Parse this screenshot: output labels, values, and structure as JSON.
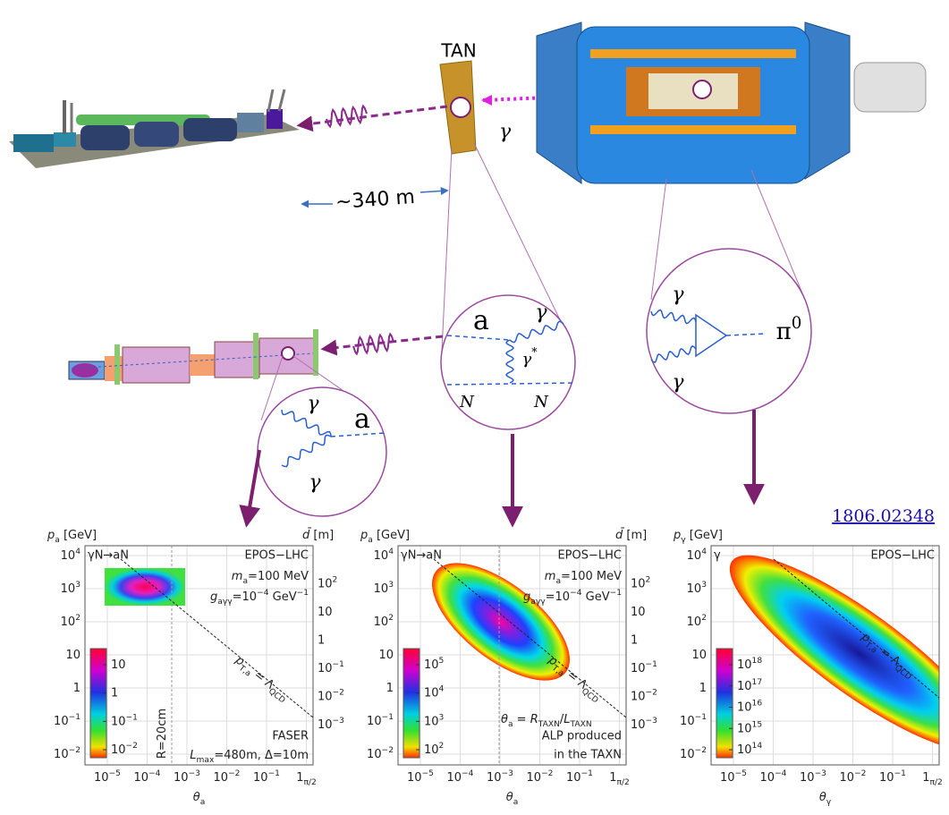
{
  "beamline": {
    "tan": "TAN",
    "gamma": "γ",
    "distance": "~340 m"
  },
  "diagrams": {
    "faser": {
      "gamma_top": "γ",
      "gamma_bottom": "γ",
      "axion": "a"
    },
    "tan": {
      "axion": "a",
      "photon": "γ",
      "virtual_photon": [
        {
          "text": "γ"
        },
        {
          "text": "*",
          "style": "sup"
        }
      ],
      "nucleus_in": "N",
      "nucleus_out": "N"
    },
    "pion": {
      "gamma_top": "γ",
      "gamma_bottom": "γ",
      "pion": [
        {
          "text": "π"
        },
        {
          "text": "0",
          "style": "sup"
        }
      ]
    }
  },
  "reference": "1806.02348",
  "plots": [
    {
      "y_label": [
        {
          "text": "p",
          "style": "i"
        },
        {
          "text": "a",
          "style": "sub"
        },
        {
          "text": " [GeV]"
        }
      ],
      "y2_label": [
        {
          "text": "d̄",
          "style": "i"
        },
        {
          "text": " [m]"
        }
      ],
      "x_label": [
        {
          "text": "θ",
          "style": "i"
        },
        {
          "text": "a",
          "style": "sub"
        }
      ],
      "process": "γN→aN",
      "generator": "EPOS−LHC",
      "mass": [
        {
          "text": "m",
          "style": "i"
        },
        {
          "text": "a",
          "style": "sub"
        },
        {
          "text": "=100 MeV"
        }
      ],
      "coupling": [
        {
          "text": "g",
          "style": "i"
        },
        {
          "text": "aγγ",
          "style": "sub"
        },
        {
          "text": "=10"
        },
        {
          "text": "−4",
          "style": "sup"
        },
        {
          "text": " GeV"
        },
        {
          "text": "−1",
          "style": "sup"
        }
      ],
      "line_label": [
        {
          "text": "p",
          "style": "i"
        },
        {
          "text": "T,a",
          "style": "sub"
        },
        {
          "text": " = Λ"
        },
        {
          "text": "QCD",
          "style": "sub"
        }
      ],
      "cut_label": [
        {
          "text": "R=20cm"
        }
      ],
      "detector": "FASER",
      "detector_specs": [
        {
          "text": "L",
          "style": "i"
        },
        {
          "text": "max",
          "style": "sub"
        },
        {
          "text": "=480m, Δ=10m"
        }
      ],
      "yticks": [
        [
          {
            "text": "10"
          },
          {
            "text": "−2",
            "style": "sup"
          }
        ],
        [
          {
            "text": "10"
          },
          {
            "text": "−1",
            "style": "sup"
          }
        ],
        [
          {
            "text": "1"
          }
        ],
        [
          {
            "text": "10"
          }
        ],
        [
          {
            "text": "10"
          },
          {
            "text": "2",
            "style": "sup"
          }
        ],
        [
          {
            "text": "10"
          },
          {
            "text": "3",
            "style": "sup"
          }
        ],
        [
          {
            "text": "10"
          },
          {
            "text": "4",
            "style": "sup"
          }
        ]
      ],
      "y2ticks": [
        [
          {
            "text": "10"
          },
          {
            "text": "−3",
            "style": "sup"
          }
        ],
        [
          {
            "text": "10"
          },
          {
            "text": "−2",
            "style": "sup"
          }
        ],
        [
          {
            "text": "10"
          },
          {
            "text": "−1",
            "style": "sup"
          }
        ],
        [
          {
            "text": "1"
          }
        ],
        [
          {
            "text": "10"
          }
        ],
        [
          {
            "text": "10"
          },
          {
            "text": "2",
            "style": "sup"
          }
        ]
      ],
      "xticks": [
        [
          {
            "text": "10"
          },
          {
            "text": "−5",
            "style": "sup"
          }
        ],
        [
          {
            "text": "10"
          },
          {
            "text": "−4",
            "style": "sup"
          }
        ],
        [
          {
            "text": "10"
          },
          {
            "text": "−3",
            "style": "sup"
          }
        ],
        [
          {
            "text": "10"
          },
          {
            "text": "−2",
            "style": "sup"
          }
        ],
        [
          {
            "text": "10"
          },
          {
            "text": "−1",
            "style": "sup"
          }
        ],
        [
          {
            "text": "1"
          },
          {
            "text": "π/2",
            "style": "sub"
          }
        ]
      ],
      "colorbar_ticks": [
        [
          {
            "text": "10"
          },
          {
            "text": "−2",
            "style": "sup"
          }
        ],
        [
          {
            "text": "10"
          },
          {
            "text": "−1",
            "style": "sup"
          }
        ],
        [
          {
            "text": "1"
          }
        ],
        [
          {
            "text": "10"
          }
        ]
      ]
    },
    {
      "y_label": [
        {
          "text": "p",
          "style": "i"
        },
        {
          "text": "a",
          "style": "sub"
        },
        {
          "text": " [GeV]"
        }
      ],
      "y2_label": [
        {
          "text": "d̄",
          "style": "i"
        },
        {
          "text": " [m]"
        }
      ],
      "x_label": [
        {
          "text": "θ",
          "style": "i"
        },
        {
          "text": "a",
          "style": "sub"
        }
      ],
      "process": "γN→aN",
      "generator": "EPOS−LHC",
      "mass": [
        {
          "text": "m",
          "style": "i"
        },
        {
          "text": "a",
          "style": "sub"
        },
        {
          "text": "=100 MeV"
        }
      ],
      "coupling": [
        {
          "text": "g",
          "style": "i"
        },
        {
          "text": "aγγ",
          "style": "sub"
        },
        {
          "text": "=10"
        },
        {
          "text": "−4",
          "style": "sup"
        },
        {
          "text": " GeV"
        },
        {
          "text": "−1",
          "style": "sup"
        }
      ],
      "line_label": [
        {
          "text": "p",
          "style": "i"
        },
        {
          "text": "T,a",
          "style": "sub"
        },
        {
          "text": " = Λ"
        },
        {
          "text": "QCD",
          "style": "sub"
        }
      ],
      "cut_label": [
        {
          "text": "θ",
          "style": "i"
        },
        {
          "text": "a",
          "style": "sub"
        },
        {
          "text": " = "
        },
        {
          "text": "R",
          "style": "i"
        },
        {
          "text": "TAXN",
          "style": "sub"
        },
        {
          "text": "/"
        },
        {
          "text": "L",
          "style": "i"
        },
        {
          "text": "TAXN",
          "style": "sub"
        }
      ],
      "note": [
        "ALP produced",
        "in the TAXN"
      ],
      "yticks": [
        [
          {
            "text": "10"
          },
          {
            "text": "−2",
            "style": "sup"
          }
        ],
        [
          {
            "text": "10"
          },
          {
            "text": "−1",
            "style": "sup"
          }
        ],
        [
          {
            "text": "1"
          }
        ],
        [
          {
            "text": "10"
          }
        ],
        [
          {
            "text": "10"
          },
          {
            "text": "2",
            "style": "sup"
          }
        ],
        [
          {
            "text": "10"
          },
          {
            "text": "3",
            "style": "sup"
          }
        ],
        [
          {
            "text": "10"
          },
          {
            "text": "4",
            "style": "sup"
          }
        ]
      ],
      "y2ticks": [
        [
          {
            "text": "10"
          },
          {
            "text": "−3",
            "style": "sup"
          }
        ],
        [
          {
            "text": "10"
          },
          {
            "text": "−2",
            "style": "sup"
          }
        ],
        [
          {
            "text": "10"
          },
          {
            "text": "−1",
            "style": "sup"
          }
        ],
        [
          {
            "text": "1"
          }
        ],
        [
          {
            "text": "10"
          }
        ],
        [
          {
            "text": "10"
          },
          {
            "text": "2",
            "style": "sup"
          }
        ]
      ],
      "xticks": [
        [
          {
            "text": "10"
          },
          {
            "text": "−5",
            "style": "sup"
          }
        ],
        [
          {
            "text": "10"
          },
          {
            "text": "−4",
            "style": "sup"
          }
        ],
        [
          {
            "text": "10"
          },
          {
            "text": "−3",
            "style": "sup"
          }
        ],
        [
          {
            "text": "10"
          },
          {
            "text": "−2",
            "style": "sup"
          }
        ],
        [
          {
            "text": "10"
          },
          {
            "text": "−1",
            "style": "sup"
          }
        ],
        [
          {
            "text": "1"
          },
          {
            "text": "π/2",
            "style": "sub"
          }
        ]
      ],
      "colorbar_ticks": [
        [
          {
            "text": "10"
          },
          {
            "text": "2",
            "style": "sup"
          }
        ],
        [
          {
            "text": "10"
          },
          {
            "text": "3",
            "style": "sup"
          }
        ],
        [
          {
            "text": "10"
          },
          {
            "text": "4",
            "style": "sup"
          }
        ],
        [
          {
            "text": "10"
          },
          {
            "text": "5",
            "style": "sup"
          }
        ]
      ]
    },
    {
      "y_label": [
        {
          "text": "p",
          "style": "i"
        },
        {
          "text": "γ",
          "style": "sub"
        },
        {
          "text": " [GeV]"
        }
      ],
      "x_label": [
        {
          "text": "θ",
          "style": "i"
        },
        {
          "text": "γ",
          "style": "sub"
        }
      ],
      "process": "γ",
      "generator": "EPOS−LHC",
      "line_label": [
        {
          "text": "p",
          "style": "i"
        },
        {
          "text": "T,a",
          "style": "sub"
        },
        {
          "text": " = Λ"
        },
        {
          "text": "QCD",
          "style": "sub"
        }
      ],
      "yticks": [
        [
          {
            "text": "10"
          },
          {
            "text": "−2",
            "style": "sup"
          }
        ],
        [
          {
            "text": "10"
          },
          {
            "text": "−1",
            "style": "sup"
          }
        ],
        [
          {
            "text": "1"
          }
        ],
        [
          {
            "text": "10"
          }
        ],
        [
          {
            "text": "10"
          },
          {
            "text": "2",
            "style": "sup"
          }
        ],
        [
          {
            "text": "10"
          },
          {
            "text": "3",
            "style": "sup"
          }
        ],
        [
          {
            "text": "10"
          },
          {
            "text": "4",
            "style": "sup"
          }
        ]
      ],
      "xticks": [
        [
          {
            "text": "10"
          },
          {
            "text": "−5",
            "style": "sup"
          }
        ],
        [
          {
            "text": "10"
          },
          {
            "text": "−4",
            "style": "sup"
          }
        ],
        [
          {
            "text": "10"
          },
          {
            "text": "−3",
            "style": "sup"
          }
        ],
        [
          {
            "text": "10"
          },
          {
            "text": "−2",
            "style": "sup"
          }
        ],
        [
          {
            "text": "10"
          },
          {
            "text": "−1",
            "style": "sup"
          }
        ],
        [
          {
            "text": "1"
          },
          {
            "text": "π/2",
            "style": "sub"
          }
        ]
      ],
      "colorbar_ticks": [
        [
          {
            "text": "10"
          },
          {
            "text": "14",
            "style": "sup"
          }
        ],
        [
          {
            "text": "10"
          },
          {
            "text": "15",
            "style": "sup"
          }
        ],
        [
          {
            "text": "10"
          },
          {
            "text": "16",
            "style": "sup"
          }
        ],
        [
          {
            "text": "10"
          },
          {
            "text": "17",
            "style": "sup"
          }
        ],
        [
          {
            "text": "10"
          },
          {
            "text": "18",
            "style": "sup"
          }
        ]
      ]
    }
  ]
}
